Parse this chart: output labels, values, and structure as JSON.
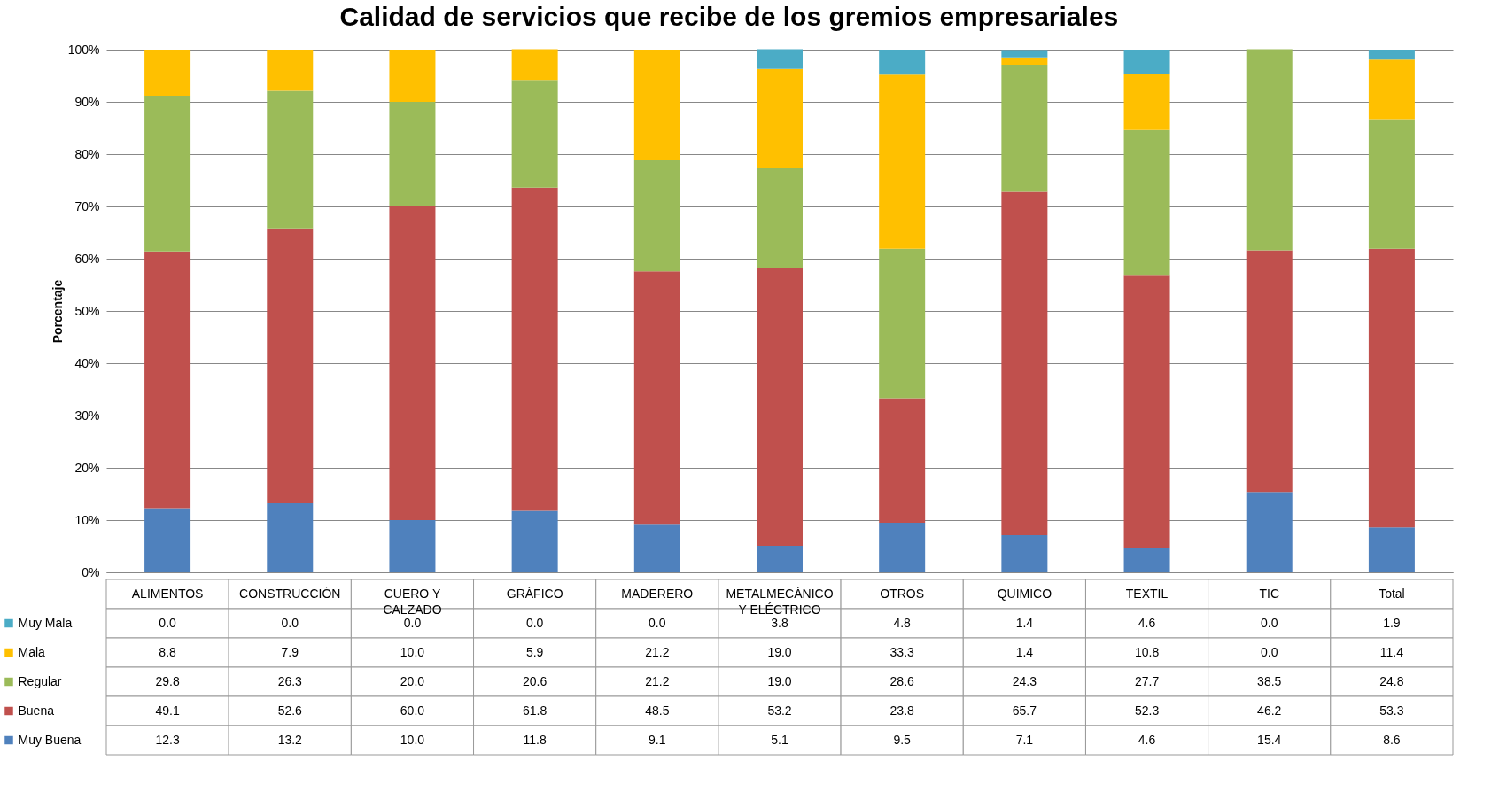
{
  "chart_data": {
    "type": "bar",
    "stacked": true,
    "title": "Calidad de servicios que recibe de los gremios empresariales",
    "ylabel": "Porcentaje",
    "categories": [
      "ALIMENTOS",
      "CONSTRUCCIÓN",
      "CUERO Y CALZADO",
      "GRÁFICO",
      "MADERERO",
      "METALMECÁNICO Y ELÉCTRICO",
      "OTROS",
      "QUIMICO",
      "TEXTIL",
      "TIC",
      "Total"
    ],
    "series": [
      {
        "name": "Muy Buena",
        "color": "#4f81bd",
        "values": [
          12.3,
          13.2,
          10.0,
          11.8,
          9.1,
          5.1,
          9.5,
          7.1,
          4.6,
          15.4,
          8.6
        ],
        "value_labels": [
          "12.3",
          "13.2",
          "10.0",
          "11.8",
          "9.1",
          "5.1",
          "9.5",
          "7.1",
          "4.6",
          "15.4",
          "8.6"
        ]
      },
      {
        "name": "Buena",
        "color": "#c0504d",
        "values": [
          49.1,
          52.6,
          60.0,
          61.8,
          48.5,
          53.2,
          23.8,
          65.7,
          52.3,
          46.2,
          53.3
        ],
        "value_labels": [
          "49.1",
          "52.6",
          "60.0",
          "61.8",
          "48.5",
          "53.2",
          "23.8",
          "65.7",
          "52.3",
          "46.2",
          "53.3"
        ]
      },
      {
        "name": "Regular",
        "color": "#9bbb59",
        "values": [
          29.8,
          26.3,
          20.0,
          20.6,
          21.2,
          19.0,
          28.6,
          24.3,
          27.7,
          38.5,
          24.8
        ],
        "value_labels": [
          "29.8",
          "26.3",
          "20.0",
          "20.6",
          "21.2",
          "19.0",
          "28.6",
          "24.3",
          "27.7",
          "38.5",
          "24.8"
        ]
      },
      {
        "name": "Mala",
        "color": "#ffc000",
        "values": [
          8.8,
          7.9,
          10.0,
          5.9,
          21.2,
          19.0,
          33.3,
          1.4,
          10.8,
          0.0,
          11.4
        ],
        "value_labels": [
          "8.8",
          "7.9",
          "10.0",
          "5.9",
          "21.2",
          "19.0",
          "33.3",
          "1.4",
          "10.8",
          "0.0",
          "11.4"
        ]
      },
      {
        "name": "Muy Mala",
        "color": "#4bacc6",
        "values": [
          0.0,
          0.0,
          0.0,
          0.0,
          0.0,
          3.8,
          4.8,
          1.4,
          4.6,
          0.0,
          1.9
        ],
        "value_labels": [
          "0.0",
          "0.0",
          "0.0",
          "0.0",
          "0.0",
          "3.8",
          "4.8",
          "1.4",
          "4.6",
          "0.0",
          "1.9"
        ]
      }
    ],
    "ylim": [
      0,
      100
    ],
    "yticks": [
      {
        "value": 0,
        "label": "0%"
      },
      {
        "value": 10,
        "label": "10%"
      },
      {
        "value": 20,
        "label": "20%"
      },
      {
        "value": 30,
        "label": "30%"
      },
      {
        "value": 40,
        "label": "40%"
      },
      {
        "value": 50,
        "label": "50%"
      },
      {
        "value": 60,
        "label": "60%"
      },
      {
        "value": 70,
        "label": "70%"
      },
      {
        "value": 80,
        "label": "80%"
      },
      {
        "value": 90,
        "label": "90%"
      },
      {
        "value": 100,
        "label": "100%"
      }
    ],
    "grid": "y",
    "legend": "bottom"
  }
}
